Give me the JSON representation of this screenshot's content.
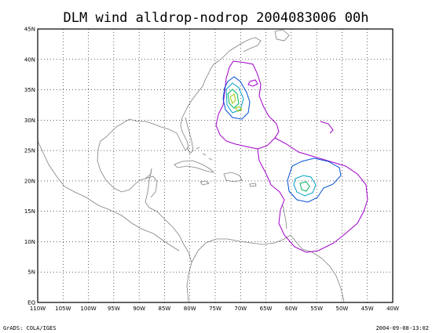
{
  "title": "DLM wind alldrop-nodrop 2004083006 00h",
  "footer_left": "GrADS: COLA/IGES",
  "footer_right": "2004-09-08-13:02",
  "lon_labels": [
    "110W",
    "105W",
    "100W",
    "95W",
    "90W",
    "85W",
    "80W",
    "75W",
    "70W",
    "65W",
    "60W",
    "55W",
    "50W",
    "45W",
    "40W"
  ],
  "lat_labels": [
    "EQ",
    "5N",
    "10N",
    "15N",
    "20N",
    "25N",
    "30N",
    "35N",
    "40N",
    "45N"
  ],
  "contour_colors": {
    "outer": "#a000c8",
    "level2": "#0050d2",
    "level3": "#00a0c8",
    "level4": "#00b464",
    "level5": "#a0c800"
  }
}
